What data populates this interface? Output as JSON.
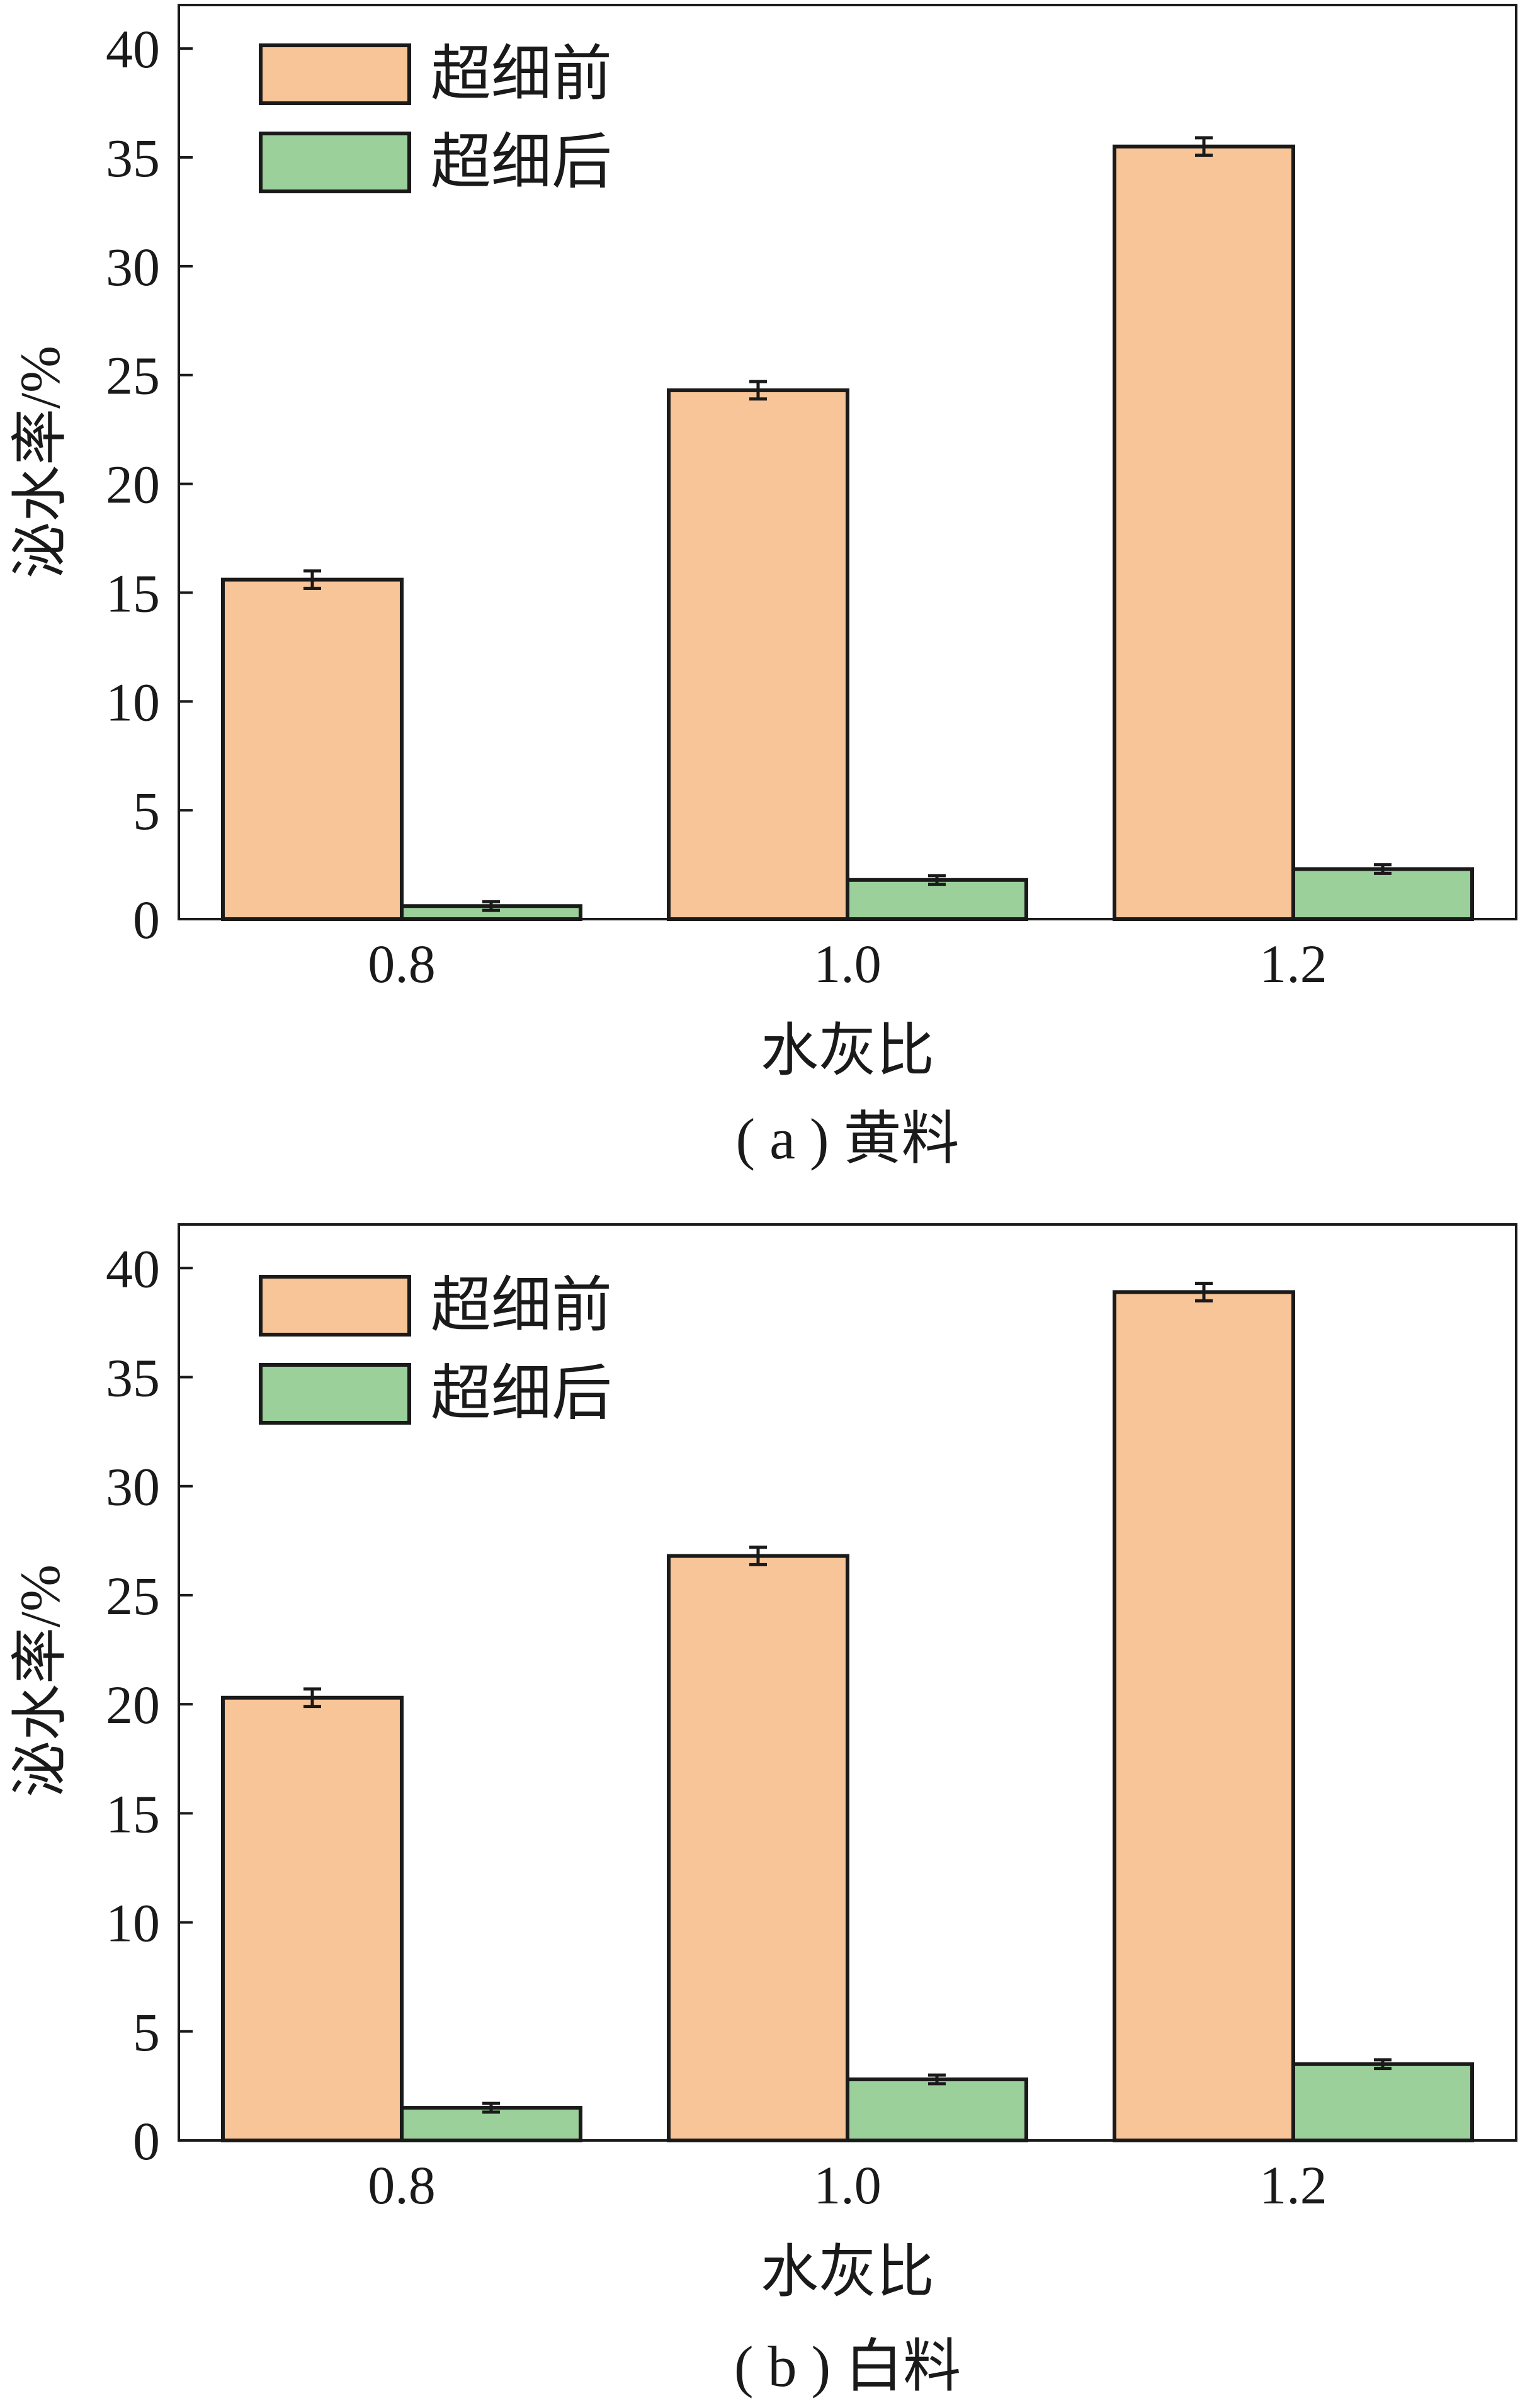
{
  "chart_data": [
    {
      "type": "bar",
      "caption": "( a ) 黄料",
      "xlabel": "水灰比",
      "ylabel": "泌水率/%",
      "categories": [
        "0.8",
        "1.0",
        "1.2"
      ],
      "ylim": [
        0,
        42
      ],
      "yticks": [
        0,
        5,
        10,
        15,
        20,
        25,
        30,
        35,
        40
      ],
      "legend_position": "top-left",
      "grid": false,
      "series": [
        {
          "name": "超细前",
          "color": "#f7c598",
          "values": [
            15.6,
            24.3,
            35.5
          ],
          "errors": [
            0.4,
            0.4,
            0.4
          ]
        },
        {
          "name": "超细后",
          "color": "#9bd09a",
          "values": [
            0.6,
            1.8,
            2.3
          ],
          "errors": [
            0.2,
            0.2,
            0.2
          ]
        }
      ]
    },
    {
      "type": "bar",
      "caption": "( b ) 白料",
      "xlabel": "水灰比",
      "ylabel": "泌水率/%",
      "categories": [
        "0.8",
        "1.0",
        "1.2"
      ],
      "ylim": [
        0,
        42
      ],
      "yticks": [
        0,
        5,
        10,
        15,
        20,
        25,
        30,
        35,
        40
      ],
      "legend_position": "top-left",
      "grid": false,
      "series": [
        {
          "name": "超细前",
          "color": "#f7c598",
          "values": [
            20.3,
            26.8,
            38.9
          ],
          "errors": [
            0.4,
            0.4,
            0.4
          ]
        },
        {
          "name": "超细后",
          "color": "#9bd09a",
          "values": [
            1.5,
            2.8,
            3.5
          ],
          "errors": [
            0.2,
            0.2,
            0.2
          ]
        }
      ]
    }
  ]
}
